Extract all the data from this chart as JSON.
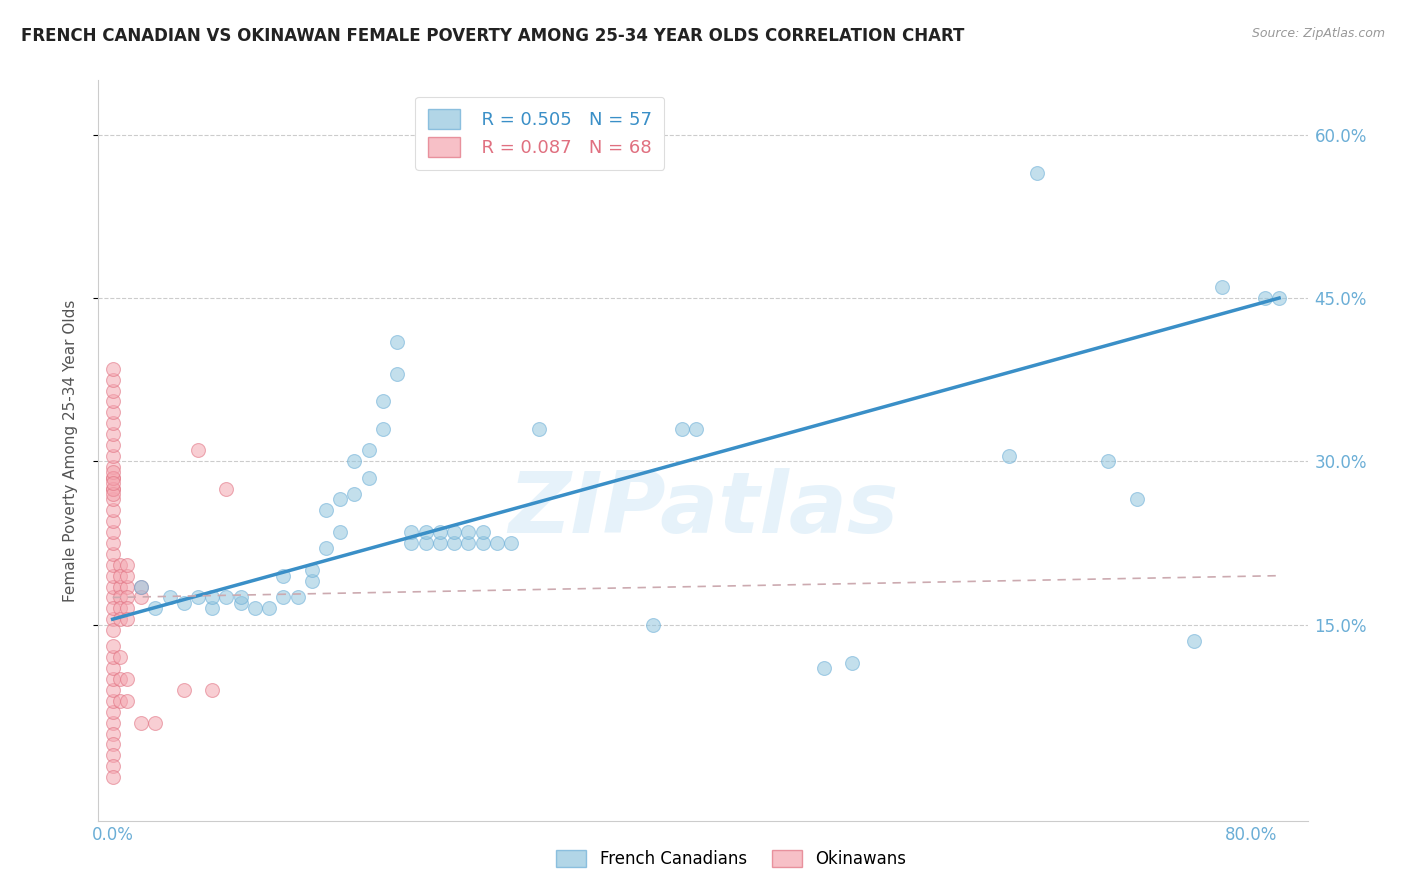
{
  "title": "FRENCH CANADIAN VS OKINAWAN FEMALE POVERTY AMONG 25-34 YEAR OLDS CORRELATION CHART",
  "source": "Source: ZipAtlas.com",
  "ylabel": "Female Poverty Among 25-34 Year Olds",
  "watermark": "ZIPatlas",
  "legend_fc_label": "French Canadians",
  "legend_ok_label": "Okinawans",
  "fc_R": 0.505,
  "fc_N": 57,
  "ok_R": 0.087,
  "ok_N": 68,
  "fc_color": "#92c5de",
  "ok_color": "#f4a6b0",
  "fc_edge_color": "#6baed6",
  "ok_edge_color": "#e07080",
  "fc_line_color": "#3a8fc7",
  "ok_line_color": "#dda0aa",
  "xlim": [
    -0.01,
    0.84
  ],
  "ylim": [
    -0.03,
    0.65
  ],
  "fc_scatter": [
    [
      0.02,
      0.185
    ],
    [
      0.03,
      0.165
    ],
    [
      0.04,
      0.175
    ],
    [
      0.05,
      0.17
    ],
    [
      0.06,
      0.175
    ],
    [
      0.07,
      0.165
    ],
    [
      0.07,
      0.175
    ],
    [
      0.08,
      0.175
    ],
    [
      0.09,
      0.17
    ],
    [
      0.09,
      0.175
    ],
    [
      0.1,
      0.165
    ],
    [
      0.11,
      0.165
    ],
    [
      0.12,
      0.175
    ],
    [
      0.12,
      0.195
    ],
    [
      0.13,
      0.175
    ],
    [
      0.14,
      0.19
    ],
    [
      0.14,
      0.2
    ],
    [
      0.15,
      0.22
    ],
    [
      0.15,
      0.255
    ],
    [
      0.16,
      0.235
    ],
    [
      0.16,
      0.265
    ],
    [
      0.17,
      0.27
    ],
    [
      0.17,
      0.3
    ],
    [
      0.18,
      0.285
    ],
    [
      0.18,
      0.31
    ],
    [
      0.19,
      0.33
    ],
    [
      0.19,
      0.355
    ],
    [
      0.2,
      0.38
    ],
    [
      0.2,
      0.41
    ],
    [
      0.21,
      0.225
    ],
    [
      0.21,
      0.235
    ],
    [
      0.22,
      0.225
    ],
    [
      0.22,
      0.235
    ],
    [
      0.23,
      0.225
    ],
    [
      0.23,
      0.235
    ],
    [
      0.24,
      0.225
    ],
    [
      0.24,
      0.235
    ],
    [
      0.25,
      0.225
    ],
    [
      0.25,
      0.235
    ],
    [
      0.26,
      0.225
    ],
    [
      0.26,
      0.235
    ],
    [
      0.27,
      0.225
    ],
    [
      0.28,
      0.225
    ],
    [
      0.3,
      0.33
    ],
    [
      0.38,
      0.15
    ],
    [
      0.4,
      0.33
    ],
    [
      0.41,
      0.33
    ],
    [
      0.5,
      0.11
    ],
    [
      0.52,
      0.115
    ],
    [
      0.63,
      0.305
    ],
    [
      0.65,
      0.565
    ],
    [
      0.7,
      0.3
    ],
    [
      0.72,
      0.265
    ],
    [
      0.76,
      0.135
    ],
    [
      0.78,
      0.46
    ],
    [
      0.81,
      0.45
    ],
    [
      0.82,
      0.45
    ]
  ],
  "ok_scatter": [
    [
      0.0,
      0.175
    ],
    [
      0.0,
      0.185
    ],
    [
      0.0,
      0.195
    ],
    [
      0.0,
      0.205
    ],
    [
      0.0,
      0.215
    ],
    [
      0.0,
      0.225
    ],
    [
      0.0,
      0.235
    ],
    [
      0.0,
      0.245
    ],
    [
      0.0,
      0.155
    ],
    [
      0.0,
      0.165
    ],
    [
      0.0,
      0.145
    ],
    [
      0.0,
      0.255
    ],
    [
      0.0,
      0.265
    ],
    [
      0.0,
      0.275
    ],
    [
      0.0,
      0.285
    ],
    [
      0.0,
      0.295
    ],
    [
      0.0,
      0.305
    ],
    [
      0.0,
      0.275
    ],
    [
      0.0,
      0.285
    ],
    [
      0.0,
      0.29
    ],
    [
      0.0,
      0.27
    ],
    [
      0.0,
      0.28
    ],
    [
      0.005,
      0.185
    ],
    [
      0.005,
      0.205
    ],
    [
      0.005,
      0.195
    ],
    [
      0.005,
      0.175
    ],
    [
      0.005,
      0.165
    ],
    [
      0.005,
      0.155
    ],
    [
      0.01,
      0.185
    ],
    [
      0.01,
      0.195
    ],
    [
      0.01,
      0.205
    ],
    [
      0.01,
      0.175
    ],
    [
      0.01,
      0.165
    ],
    [
      0.01,
      0.155
    ],
    [
      0.0,
      0.06
    ],
    [
      0.0,
      0.07
    ],
    [
      0.0,
      0.08
    ],
    [
      0.0,
      0.09
    ],
    [
      0.0,
      0.1
    ],
    [
      0.0,
      0.11
    ],
    [
      0.0,
      0.12
    ],
    [
      0.0,
      0.13
    ],
    [
      0.0,
      0.05
    ],
    [
      0.0,
      0.04
    ],
    [
      0.0,
      0.03
    ],
    [
      0.0,
      0.02
    ],
    [
      0.0,
      0.01
    ],
    [
      0.005,
      0.08
    ],
    [
      0.005,
      0.1
    ],
    [
      0.005,
      0.12
    ],
    [
      0.01,
      0.08
    ],
    [
      0.01,
      0.1
    ],
    [
      0.02,
      0.175
    ],
    [
      0.02,
      0.185
    ],
    [
      0.02,
      0.06
    ],
    [
      0.03,
      0.06
    ],
    [
      0.05,
      0.09
    ],
    [
      0.06,
      0.31
    ],
    [
      0.07,
      0.09
    ],
    [
      0.08,
      0.275
    ],
    [
      0.0,
      0.315
    ],
    [
      0.0,
      0.325
    ],
    [
      0.0,
      0.335
    ],
    [
      0.0,
      0.345
    ],
    [
      0.0,
      0.355
    ],
    [
      0.0,
      0.365
    ],
    [
      0.0,
      0.375
    ],
    [
      0.0,
      0.385
    ]
  ],
  "background_color": "#ffffff",
  "grid_color": "#cccccc",
  "tick_color": "#6baed6",
  "title_fontsize": 12,
  "label_fontsize": 11,
  "tick_fontsize": 12
}
